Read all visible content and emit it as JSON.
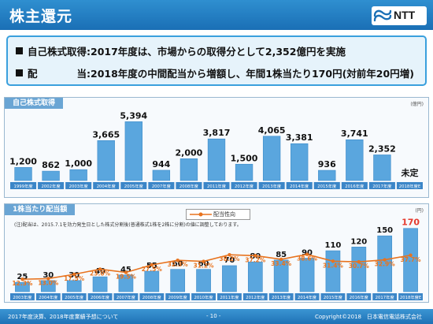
{
  "header": {
    "title": "株主還元",
    "logo_text": "NTT"
  },
  "summary": {
    "line1": "自己株式取得:2017年度は、市場からの取得分として2,352億円を実施",
    "line2": "配　　　　当:2018年度の中間配当から増額し、年間1株当たり170円(対前年20円増)"
  },
  "chart_data": [
    {
      "type": "bar",
      "title": "自己株式取得",
      "unit": "(億円)",
      "categories": [
        "1999年度",
        "2002年度",
        "2003年度",
        "2004年度",
        "2005年度",
        "2007年度",
        "2008年度",
        "2011年度",
        "2012年度",
        "2013年度",
        "2014年度",
        "2015年度",
        "2016年度",
        "2017年度",
        "2018年度E"
      ],
      "values": [
        1200,
        862,
        1000,
        3665,
        5394,
        944,
        2000,
        3817,
        1500,
        4065,
        3381,
        936,
        3741,
        2352,
        null
      ],
      "value_labels": [
        "1,200",
        "862",
        "1,000",
        "3,665",
        "5,394",
        "944",
        "2,000",
        "3,817",
        "1,500",
        "4,065",
        "3,381",
        "936",
        "3,741",
        "2,352",
        "未定"
      ],
      "ylim": [
        0,
        6000
      ],
      "colors": {
        "bar": "#5aa6de",
        "label_bg": "#3b86c8"
      }
    },
    {
      "type": "bar",
      "title": "1株当たり配当額",
      "unit": "(円)",
      "note": "(注)配当は、2015.7.1を効力発生日とした株式分割後(普通株式1株を2株に分割)の値に調整しております。",
      "legend": "配当性向",
      "categories": [
        "2003年度",
        "2004年度",
        "2005年度",
        "2006年度",
        "2007年度",
        "2008年度",
        "2009年度",
        "2010年度",
        "2011年度",
        "2012年度",
        "2013年度",
        "2014年度",
        "2015年度",
        "2016年度",
        "2017年度",
        "2018年度E"
      ],
      "values": [
        25,
        30,
        30,
        40,
        45,
        55,
        60,
        60,
        70,
        80,
        85,
        90,
        110,
        120,
        150,
        170
      ],
      "payout_ratio": [
        "12.3%",
        "13.0%",
        "17.5%",
        "23.0%",
        "19.5%",
        "27.5%",
        "32.3%",
        "31.2%",
        "38.2%",
        "37.2%",
        "33.4%",
        "38.6%",
        "31.4%",
        "30.7%",
        "32.9%",
        "37.7%"
      ],
      "payout_values": [
        12.3,
        13.0,
        17.5,
        23.0,
        19.5,
        27.5,
        32.3,
        31.2,
        38.2,
        37.2,
        33.4,
        38.6,
        31.4,
        30.7,
        32.9,
        37.7
      ],
      "ylim": [
        0,
        180
      ],
      "colors": {
        "bar": "#5aa6de",
        "line": "#e8731e",
        "highlight": "#e53a2e"
      }
    }
  ],
  "footer": {
    "left": "2017年度決算、2018年度業績予想について",
    "page": "- 10 -",
    "copyright": "Copyright©2018　日本電信電話株式会社"
  }
}
